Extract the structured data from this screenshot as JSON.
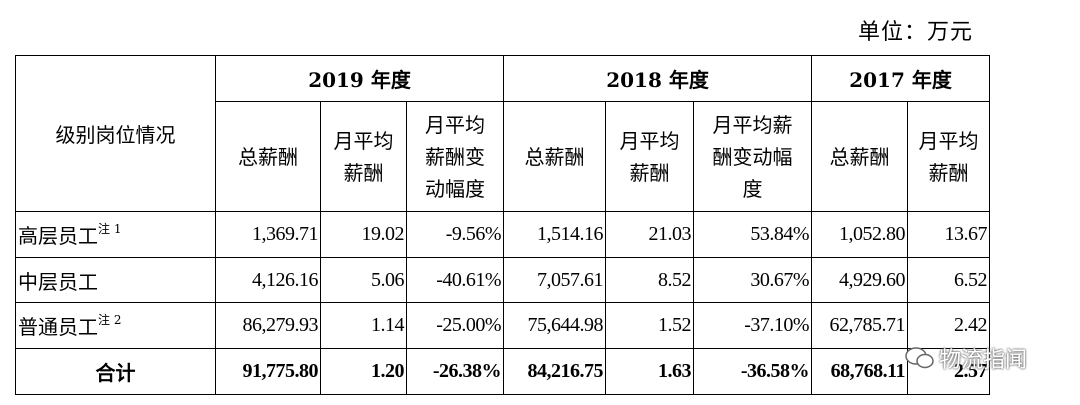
{
  "unit_label": "单位：万元",
  "table": {
    "row_header": "级别岗位情况",
    "years": [
      "2019 年度",
      "2018 年度",
      "2017 年度"
    ],
    "sub_headers": {
      "y2019": [
        "总薪酬",
        "月平均\n薪酬",
        "月平均\n薪酬变\n动幅度"
      ],
      "y2018": [
        "总薪酬",
        "月平均\n薪酬",
        "月平均薪\n酬变动幅\n度"
      ],
      "y2017": [
        "总薪酬",
        "月平均\n薪酬"
      ]
    },
    "rows": [
      {
        "label": "高层员工",
        "note": "注 1",
        "values": [
          "1,369.71",
          "19.02",
          "-9.56%",
          "1,514.16",
          "21.03",
          "53.84%",
          "1,052.80",
          "13.67"
        ]
      },
      {
        "label": "中层员工",
        "note": "",
        "values": [
          "4,126.16",
          "5.06",
          "-40.61%",
          "7,057.61",
          "8.52",
          "30.67%",
          "4,929.60",
          "6.52"
        ]
      },
      {
        "label": "普通员工",
        "note": "注 2",
        "values": [
          "86,279.93",
          "1.14",
          "-25.00%",
          "75,644.98",
          "1.52",
          "-37.10%",
          "62,785.71",
          "2.42"
        ]
      }
    ],
    "total": {
      "label": "合计",
      "values": [
        "91,775.80",
        "1.20",
        "-26.38%",
        "84,216.75",
        "1.63",
        "-36.58%",
        "68,768.11",
        "2.57"
      ]
    }
  },
  "watermark": {
    "text": "物流指闻",
    "icon": "wechat-icon"
  }
}
